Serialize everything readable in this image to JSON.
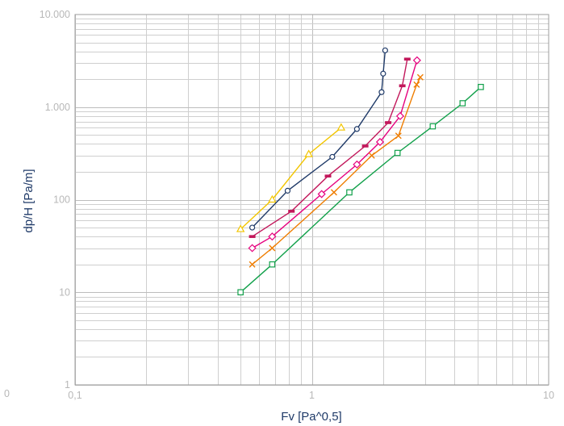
{
  "chart_data": {
    "type": "line",
    "title": "",
    "xlabel": "Fv [Pa^0,5]",
    "ylabel": "dp/H [Pa/m]",
    "x_scale": "log",
    "y_scale": "log",
    "xlim": [
      0.1,
      10
    ],
    "ylim": [
      1,
      10000
    ],
    "grid": true,
    "legend": "none",
    "x_ticks": [
      0.1,
      1,
      10
    ],
    "x_tick_labels": [
      "0,1",
      "1",
      "10"
    ],
    "y_ticks": [
      1,
      10,
      100,
      1000,
      10000
    ],
    "y_tick_labels": [
      "1",
      "10",
      "100",
      "1.000",
      "10.000"
    ],
    "origin_label": "0",
    "series": [
      {
        "color": "#f2c500",
        "marker": "triangle",
        "x": [
          0.5,
          0.68,
          0.97,
          1.33
        ],
        "y": [
          48,
          100,
          310,
          600
        ]
      },
      {
        "color": "#1f3a68",
        "marker": "circle",
        "x": [
          0.56,
          0.79,
          1.22,
          1.55,
          1.97,
          2.0,
          2.04
        ],
        "y": [
          50,
          125,
          290,
          580,
          1450,
          2300,
          4100
        ]
      },
      {
        "color": "#c2185b",
        "marker": "dash",
        "x": [
          0.56,
          0.82,
          1.17,
          1.68,
          2.1,
          2.41,
          2.53
        ],
        "y": [
          40,
          75,
          180,
          380,
          680,
          1700,
          3300
        ]
      },
      {
        "color": "#e6007e",
        "marker": "diamond",
        "x": [
          0.56,
          0.68,
          1.1,
          1.55,
          1.94,
          2.36,
          2.78
        ],
        "y": [
          30,
          40,
          115,
          240,
          420,
          800,
          3200
        ]
      },
      {
        "color": "#ef7d00",
        "marker": "x",
        "x": [
          0.56,
          0.68,
          1.24,
          1.79,
          2.32,
          2.77,
          2.87
        ],
        "y": [
          20,
          30,
          120,
          300,
          490,
          1750,
          2100
        ]
      },
      {
        "color": "#11a04a",
        "marker": "square",
        "x": [
          0.5,
          0.68,
          1.44,
          2.3,
          3.24,
          4.33,
          5.17
        ],
        "y": [
          10,
          20,
          120,
          320,
          620,
          1100,
          1650
        ]
      }
    ]
  }
}
